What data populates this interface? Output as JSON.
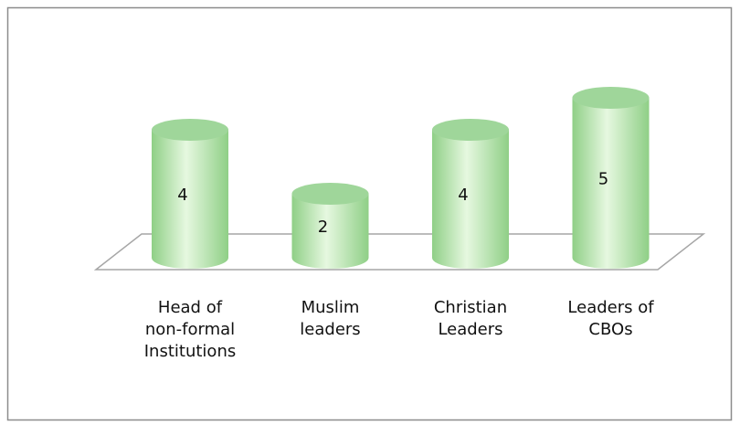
{
  "chart_data": {
    "type": "cylinder",
    "categories": [
      "Head of non-formal Institutions",
      "Muslim leaders",
      "Christian Leaders",
      "Leaders of CBOs"
    ],
    "values": [
      4,
      2,
      4,
      5
    ],
    "color": "#b9e6b0"
  }
}
